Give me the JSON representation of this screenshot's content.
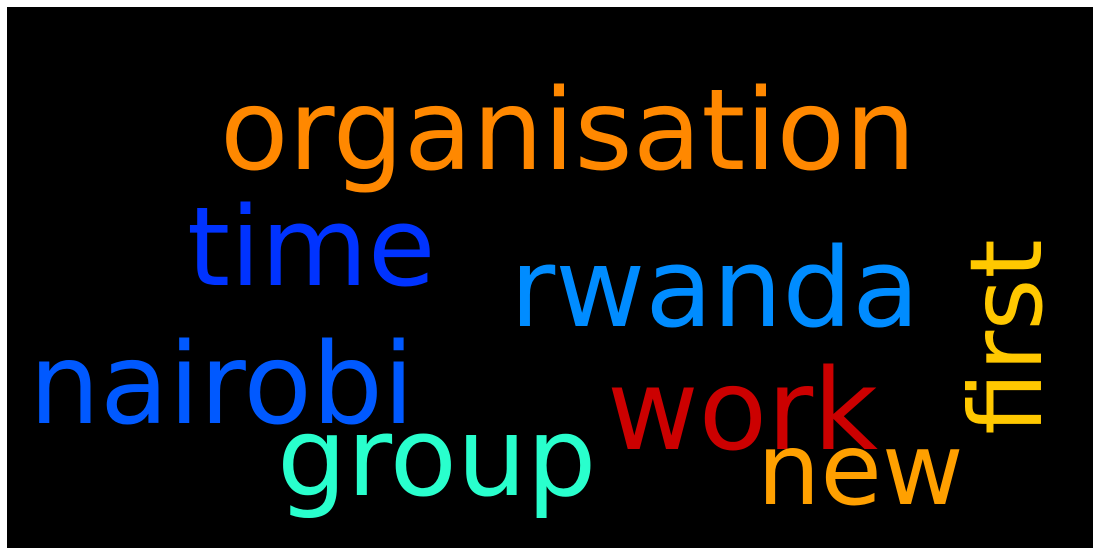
{
  "background_color": "#000000",
  "words": [
    {
      "text": "organisation",
      "color": "#ff8800"
    },
    {
      "text": "time",
      "color": "#0033ff"
    },
    {
      "text": "rwanda",
      "color": "#008cff"
    },
    {
      "text": "first",
      "color": "#ffc800"
    },
    {
      "text": "nairobi",
      "color": "#0059ff"
    },
    {
      "text": "work",
      "color": "#cc0000"
    },
    {
      "text": "group",
      "color": "#29ffcd"
    },
    {
      "text": "new",
      "color": "#ffa000"
    }
  ]
}
